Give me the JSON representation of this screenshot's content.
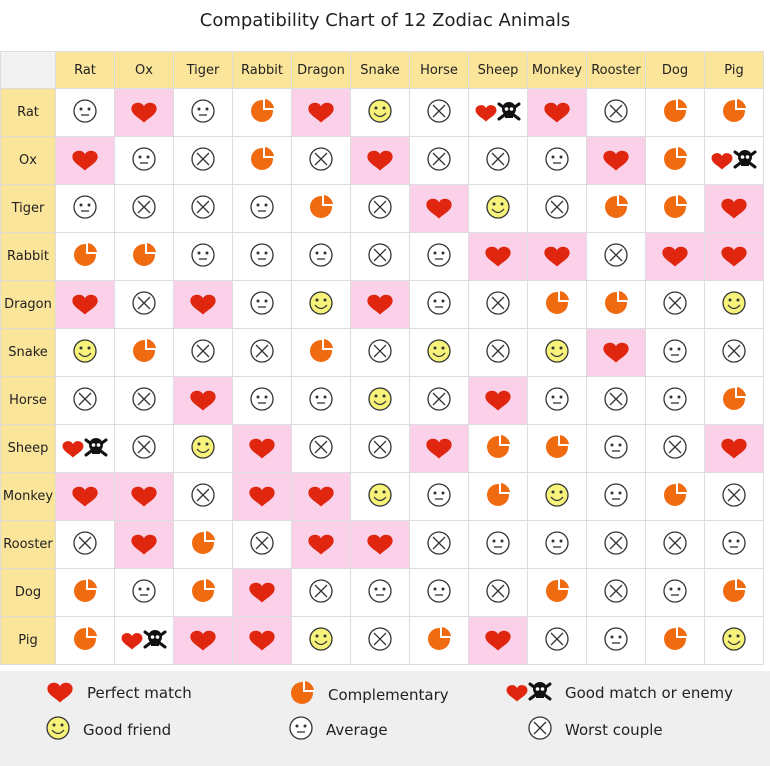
{
  "title": "Compatibility Chart of 12 Zodiac Animals",
  "chart_data": {
    "type": "table",
    "title": "Compatibility Chart of 12 Zodiac Animals",
    "columns": [
      "Rat",
      "Ox",
      "Tiger",
      "Rabbit",
      "Dragon",
      "Snake",
      "Horse",
      "Sheep",
      "Monkey",
      "Rooster",
      "Dog",
      "Pig"
    ],
    "rows": [
      "Rat",
      "Ox",
      "Tiger",
      "Rabbit",
      "Dragon",
      "Snake",
      "Horse",
      "Sheep",
      "Monkey",
      "Rooster",
      "Dog",
      "Pig"
    ],
    "code_meaning": {
      "H": "Perfect match",
      "C": "Complementary",
      "E": "Good match or enemy",
      "F": "Good friend",
      "A": "Average",
      "W": "Worst couple"
    },
    "matrix": [
      [
        "A",
        "H",
        "A",
        "C",
        "H",
        "F",
        "W",
        "E",
        "H",
        "W",
        "C",
        "C"
      ],
      [
        "H",
        "A",
        "W",
        "C",
        "W",
        "H",
        "W",
        "W",
        "A",
        "H",
        "C",
        "E"
      ],
      [
        "A",
        "W",
        "W",
        "A",
        "C",
        "W",
        "H",
        "F",
        "W",
        "C",
        "C",
        "H"
      ],
      [
        "C",
        "C",
        "A",
        "A",
        "A",
        "W",
        "A",
        "H",
        "H",
        "W",
        "H",
        "H"
      ],
      [
        "H",
        "W",
        "H",
        "A",
        "F",
        "H",
        "A",
        "W",
        "C",
        "C",
        "W",
        "F"
      ],
      [
        "F",
        "C",
        "W",
        "W",
        "C",
        "W",
        "F",
        "W",
        "F",
        "H",
        "A",
        "W"
      ],
      [
        "W",
        "W",
        "H",
        "A",
        "A",
        "F",
        "W",
        "H",
        "A",
        "W",
        "A",
        "C"
      ],
      [
        "E",
        "W",
        "F",
        "H",
        "W",
        "W",
        "H",
        "C",
        "C",
        "A",
        "W",
        "H"
      ],
      [
        "H",
        "H",
        "W",
        "H",
        "H",
        "F",
        "A",
        "C",
        "F",
        "A",
        "C",
        "W"
      ],
      [
        "W",
        "H",
        "C",
        "W",
        "H",
        "H",
        "W",
        "A",
        "A",
        "W",
        "W",
        "A"
      ],
      [
        "C",
        "A",
        "C",
        "H",
        "W",
        "A",
        "A",
        "W",
        "C",
        "W",
        "A",
        "C"
      ],
      [
        "C",
        "E",
        "H",
        "H",
        "F",
        "W",
        "C",
        "H",
        "W",
        "A",
        "C",
        "F"
      ]
    ]
  },
  "legend": [
    {
      "code": "H",
      "icon": "heart-icon",
      "label": "Perfect match"
    },
    {
      "code": "C",
      "icon": "pie-icon",
      "label": "Complementary"
    },
    {
      "code": "E",
      "icon": "heart-skull-icon",
      "label": "Good match or enemy"
    },
    {
      "code": "F",
      "icon": "smiley-icon",
      "label": "Good friend"
    },
    {
      "code": "A",
      "icon": "neutral-face-icon",
      "label": "Average"
    },
    {
      "code": "W",
      "icon": "circle-x-icon",
      "label": "Worst couple"
    }
  ],
  "colors": {
    "header": "#fbe59a",
    "perfect_bg": "#fbd1ea",
    "heart": "#e0260f",
    "pie": "#f06a10",
    "smiley": "#f7f27a"
  }
}
